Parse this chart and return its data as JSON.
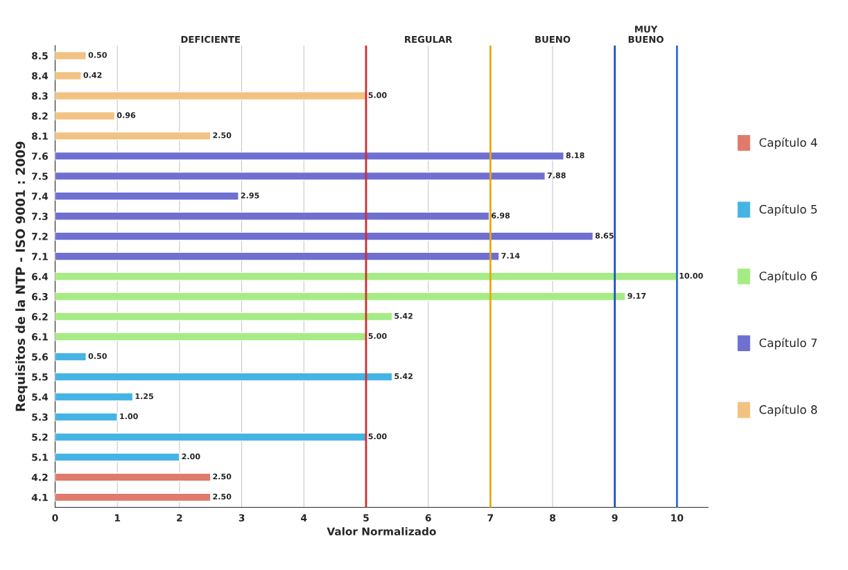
{
  "chart_data": {
    "type": "bar",
    "orientation": "horizontal",
    "xlabel": "Valor Normalizado",
    "ylabel": "Requisitos de la NTP - ISO 9001 : 2009",
    "categories": [
      "8.5",
      "8.4",
      "8.3",
      "8.2",
      "8.1",
      "7.6",
      "7.5",
      "7.4",
      "7.3",
      "7.2",
      "7.1",
      "6.4",
      "6.3",
      "6.2",
      "6.1",
      "5.6",
      "5.5",
      "5.4",
      "5.3",
      "5.2",
      "5.1",
      "4.2",
      "4.1"
    ],
    "series": [
      {
        "name": "Capítulo 4",
        "color": "#e07b6c",
        "values": [
          null,
          null,
          null,
          null,
          null,
          null,
          null,
          null,
          null,
          null,
          null,
          null,
          null,
          null,
          null,
          null,
          null,
          null,
          null,
          null,
          null,
          2.5,
          2.5
        ],
        "value_labels": [
          null,
          null,
          null,
          null,
          null,
          null,
          null,
          null,
          null,
          null,
          null,
          null,
          null,
          null,
          null,
          null,
          null,
          null,
          null,
          null,
          null,
          "2.50",
          "2.50"
        ]
      },
      {
        "name": "Capítulo 5",
        "color": "#45b4e4",
        "values": [
          null,
          null,
          null,
          null,
          null,
          null,
          null,
          null,
          null,
          null,
          null,
          null,
          null,
          null,
          null,
          0.5,
          5.42,
          1.25,
          1.0,
          5.0,
          2.0,
          null,
          null
        ],
        "value_labels": [
          null,
          null,
          null,
          null,
          null,
          null,
          null,
          null,
          null,
          null,
          null,
          null,
          null,
          null,
          null,
          "0.50",
          "5.42",
          "1.25",
          "1.00",
          "5.00",
          "2.00",
          null,
          null
        ]
      },
      {
        "name": "Capítulo 6",
        "color": "#a6ec84",
        "values": [
          null,
          null,
          null,
          null,
          null,
          null,
          null,
          null,
          null,
          null,
          null,
          10.0,
          9.17,
          5.42,
          5.0,
          null,
          null,
          null,
          null,
          null,
          null,
          null,
          null
        ],
        "value_labels": [
          null,
          null,
          null,
          null,
          null,
          null,
          null,
          null,
          null,
          null,
          null,
          "10.00",
          "9.17",
          "5.42",
          "5.00",
          null,
          null,
          null,
          null,
          null,
          null,
          null,
          null
        ]
      },
      {
        "name": "Capítulo 7",
        "color": "#6f6fd2",
        "values": [
          null,
          null,
          null,
          null,
          null,
          8.18,
          7.88,
          2.95,
          6.98,
          8.65,
          7.14,
          null,
          null,
          null,
          null,
          null,
          null,
          null,
          null,
          null,
          null,
          null,
          null
        ],
        "value_labels": [
          null,
          null,
          null,
          null,
          null,
          "8.18",
          "7.88",
          "2.95",
          "6.98",
          "8.65",
          "7.14",
          null,
          null,
          null,
          null,
          null,
          null,
          null,
          null,
          null,
          null,
          null,
          null
        ]
      },
      {
        "name": "Capítulo 8",
        "color": "#f2c282",
        "values": [
          0.5,
          0.42,
          5.0,
          0.96,
          2.5,
          null,
          null,
          null,
          null,
          null,
          null,
          null,
          null,
          null,
          null,
          null,
          null,
          null,
          null,
          null,
          null,
          null,
          null
        ],
        "value_labels": [
          "0.50",
          "0.42",
          "5.00",
          "0.96",
          "2.50",
          null,
          null,
          null,
          null,
          null,
          null,
          null,
          null,
          null,
          null,
          null,
          null,
          null,
          null,
          null,
          null,
          null,
          null
        ]
      }
    ],
    "xlim": [
      0,
      10.5
    ],
    "xticks": [
      0,
      1,
      2,
      3,
      4,
      5,
      6,
      7,
      8,
      9,
      10
    ],
    "ref_lines": [
      {
        "axis": "x",
        "value": 5,
        "color": "#d42a2a"
      },
      {
        "axis": "x",
        "value": 7,
        "color": "#e8a800"
      },
      {
        "axis": "x",
        "value": 9,
        "color": "#1f4fbf"
      },
      {
        "axis": "x",
        "value": 10,
        "color": "#2b6ccc"
      }
    ],
    "annotations": [
      "DEFICIENTE",
      "REGULAR",
      "BUENO",
      "MUY\nBUENO"
    ],
    "grid": "x",
    "legend": "right"
  }
}
